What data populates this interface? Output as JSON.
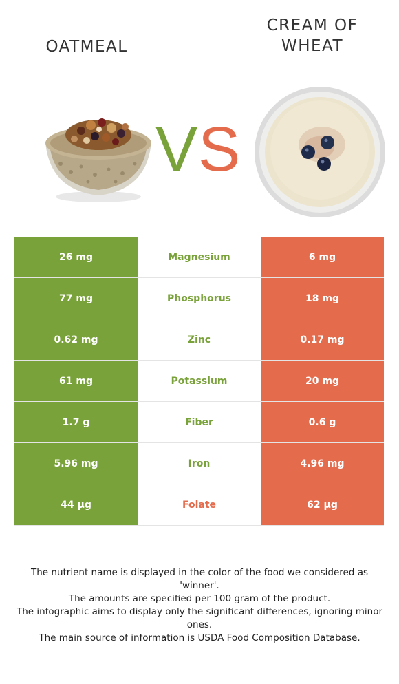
{
  "left_food": {
    "name": "OATMEAL",
    "color": "#7aa23a"
  },
  "right_food": {
    "name": "CREAM OF WHEAT",
    "color": "#e46b4c"
  },
  "vs": {
    "v": "V",
    "s": "S"
  },
  "rows": [
    {
      "left": "26 mg",
      "nutrient": "Magnesium",
      "right": "6 mg",
      "winner": "left"
    },
    {
      "left": "77 mg",
      "nutrient": "Phosphorus",
      "right": "18 mg",
      "winner": "left"
    },
    {
      "left": "0.62 mg",
      "nutrient": "Zinc",
      "right": "0.17 mg",
      "winner": "left"
    },
    {
      "left": "61 mg",
      "nutrient": "Potassium",
      "right": "20 mg",
      "winner": "left"
    },
    {
      "left": "1.7 g",
      "nutrient": "Fiber",
      "right": "0.6 g",
      "winner": "left"
    },
    {
      "left": "5.96 mg",
      "nutrient": "Iron",
      "right": "4.96 mg",
      "winner": "left"
    },
    {
      "left": "44 µg",
      "nutrient": "Folate",
      "right": "62 µg",
      "winner": "right"
    }
  ],
  "footnote": [
    "The nutrient name is displayed in the color of the food we considered as 'winner'.",
    "The amounts are specified per 100 gram of the product.",
    "The infographic aims to display only the significant differences, ignoring minor ones.",
    "The main source of information is USDA Food Composition Database."
  ]
}
